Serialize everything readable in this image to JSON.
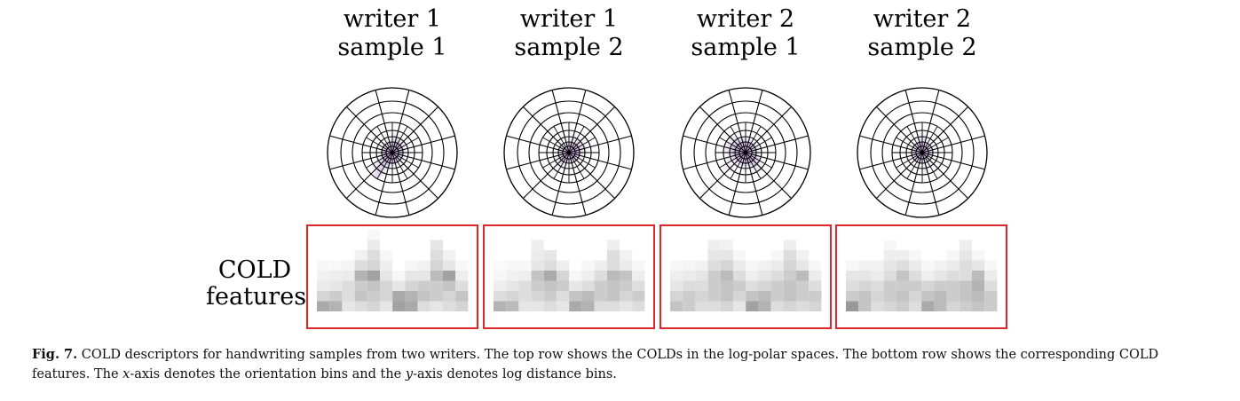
{
  "figure": {
    "columns": [
      {
        "title_line1": "writer 1",
        "title_line2": "sample 1"
      },
      {
        "title_line1": "writer 1",
        "title_line2": "sample 2"
      },
      {
        "title_line1": "writer 2",
        "title_line2": "sample 1"
      },
      {
        "title_line1": "writer 2",
        "title_line2": "sample 2"
      }
    ],
    "row_label_line1": "COLD",
    "row_label_line2": "features",
    "caption": {
      "fig_label": "Fig. 7.",
      "text_1": " COLD descriptors for handwriting samples from two writers. The top row shows the COLDs in the log-polar spaces. The bottom row shows the corresponding COLD features. The ",
      "x_var": "x",
      "text_2": "-axis denotes the orientation bins and the ",
      "y_var": "y",
      "text_3": "-axis denotes log distance bins."
    },
    "colors": {
      "box_border": "#e0262a",
      "density": "#5a1e96",
      "grid": "#000000"
    }
  }
}
